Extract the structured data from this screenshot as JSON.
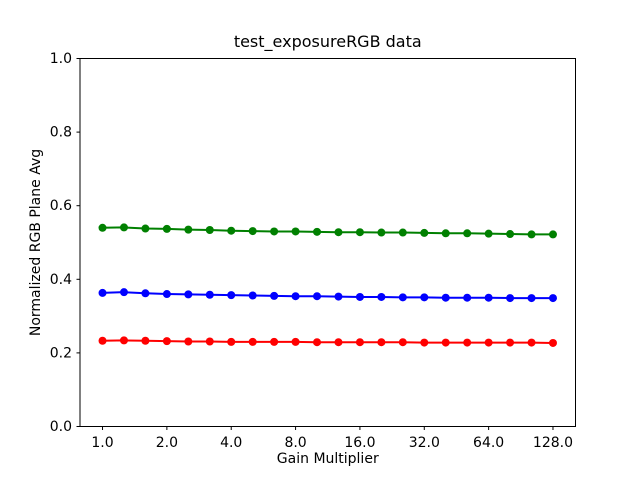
{
  "chart_data": {
    "type": "line",
    "title": "test_exposureRGB data",
    "xlabel": "Gain Multiplier",
    "ylabel": "Normalized RGB Plane Avg",
    "x_scale": "log2",
    "xlim_log2": [
      -0.35,
      7.35
    ],
    "ylim": [
      0.0,
      1.0
    ],
    "grid": false,
    "legend": "none",
    "background_color": "#ffffff",
    "axis_color": "#000000",
    "x_ticks": [
      1.0,
      2.0,
      4.0,
      8.0,
      16.0,
      32.0,
      64.0,
      128.0
    ],
    "x_tick_labels": [
      "1.0",
      "2.0",
      "4.0",
      "8.0",
      "16.0",
      "32.0",
      "64.0",
      "128.0"
    ],
    "y_ticks": [
      0.0,
      0.2,
      0.4,
      0.6,
      0.8,
      1.0
    ],
    "y_tick_labels": [
      "0.0",
      "0.2",
      "0.4",
      "0.6",
      "0.8",
      "1.0"
    ],
    "x": [
      1.0,
      1.26,
      1.587,
      2.0,
      2.52,
      3.175,
      4.0,
      5.04,
      6.35,
      8.0,
      10.079,
      12.699,
      16.0,
      20.159,
      25.398,
      32.0,
      40.317,
      50.797,
      64.0,
      80.635,
      101.594,
      128.0
    ],
    "series": [
      {
        "name": "green-plane",
        "color": "#008000",
        "marker": "o",
        "values": [
          0.54,
          0.541,
          0.538,
          0.537,
          0.535,
          0.534,
          0.532,
          0.531,
          0.53,
          0.53,
          0.529,
          0.528,
          0.528,
          0.527,
          0.527,
          0.526,
          0.525,
          0.525,
          0.524,
          0.523,
          0.522,
          0.522
        ]
      },
      {
        "name": "blue-plane",
        "color": "#0000ff",
        "marker": "o",
        "values": [
          0.363,
          0.365,
          0.362,
          0.36,
          0.359,
          0.358,
          0.357,
          0.356,
          0.355,
          0.354,
          0.354,
          0.353,
          0.352,
          0.352,
          0.351,
          0.351,
          0.35,
          0.35,
          0.35,
          0.349,
          0.349,
          0.349
        ]
      },
      {
        "name": "red-plane",
        "color": "#ff0000",
        "marker": "o",
        "values": [
          0.233,
          0.234,
          0.233,
          0.232,
          0.231,
          0.231,
          0.23,
          0.23,
          0.23,
          0.23,
          0.229,
          0.229,
          0.229,
          0.229,
          0.229,
          0.228,
          0.228,
          0.228,
          0.228,
          0.228,
          0.228,
          0.227
        ]
      }
    ]
  }
}
